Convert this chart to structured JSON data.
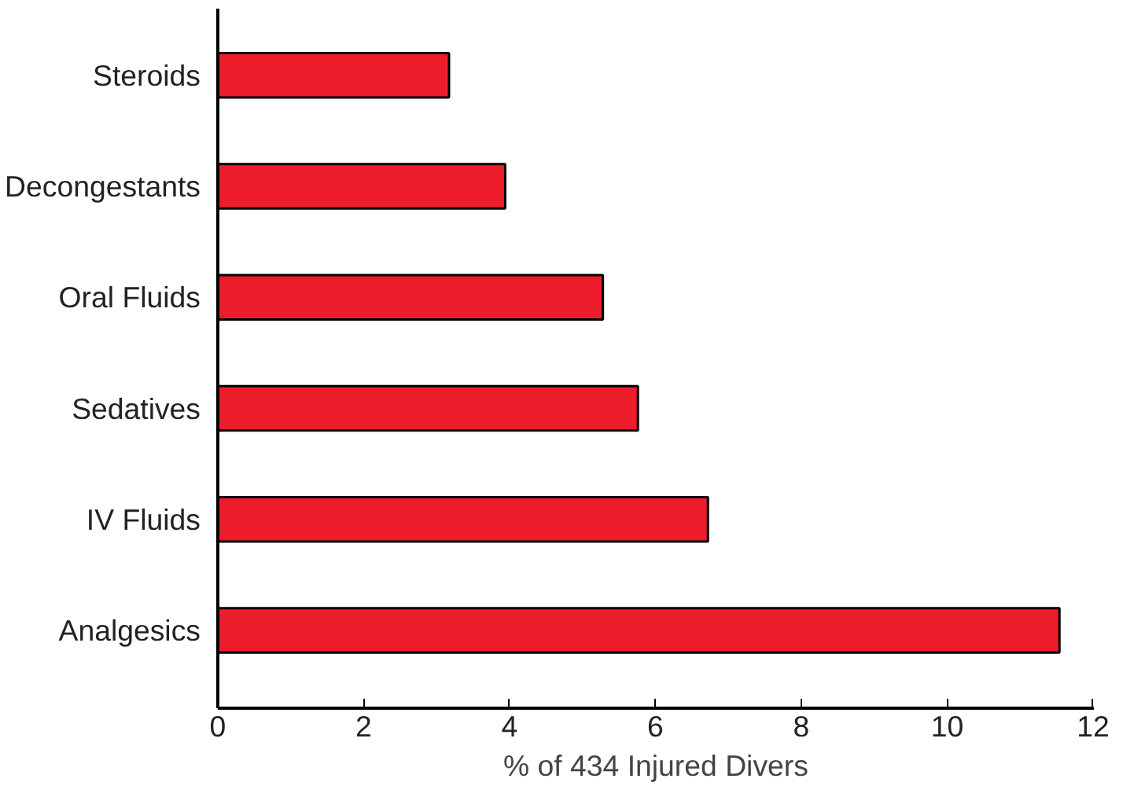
{
  "chart_data": {
    "type": "bar",
    "orientation": "horizontal",
    "xlabel": "% of 434 Injured Divers",
    "categories": [
      "Steroids",
      "Decongestants",
      "Oral Fluids",
      "Sedatives",
      "IV Fluids",
      "Analgesics"
    ],
    "values": [
      3.17,
      3.94,
      5.28,
      5.76,
      6.72,
      11.54
    ],
    "color": "#ec1c2a",
    "xlim": [
      0,
      12
    ],
    "xticks": [
      0,
      2,
      4,
      6,
      8,
      10,
      12
    ],
    "grid": false
  }
}
